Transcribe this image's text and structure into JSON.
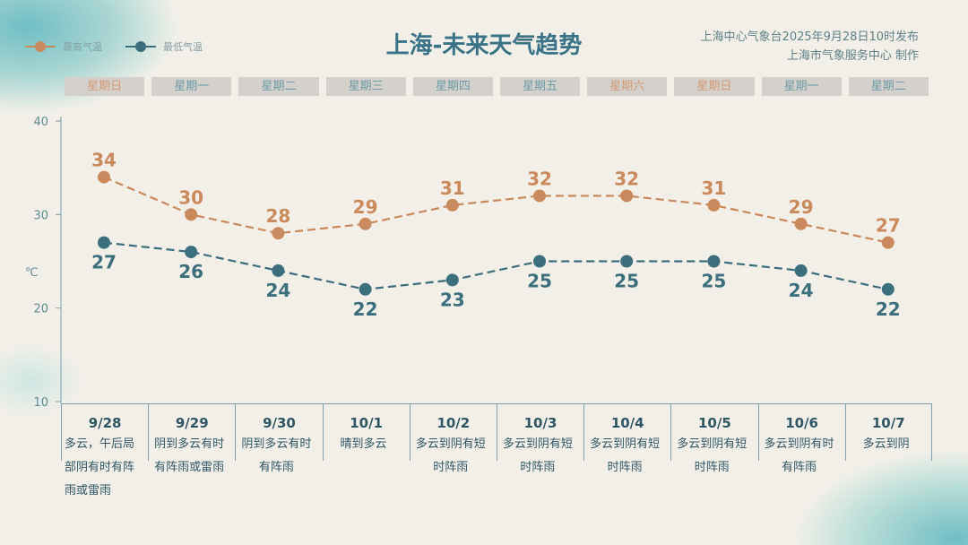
{
  "title": "上海-未来天气趋势",
  "publisher": "上海中心气象台2025年9月28日10时发布",
  "producer": "上海市气象服务中心 制作",
  "colors": {
    "high": "#c98a5e",
    "low": "#3d6e7c",
    "title": "#3b7285",
    "weekend": "#d29a78",
    "weekday": "#6d9aa5"
  },
  "legend": [
    {
      "label": "最高气温",
      "color": "#c98a5e"
    },
    {
      "label": "最低气温",
      "color": "#3d6e7c"
    }
  ],
  "weekdays": [
    {
      "label": "星期日",
      "weekend": true
    },
    {
      "label": "星期一",
      "weekend": false
    },
    {
      "label": "星期二",
      "weekend": false
    },
    {
      "label": "星期三",
      "weekend": false
    },
    {
      "label": "星期四",
      "weekend": false
    },
    {
      "label": "星期五",
      "weekend": false
    },
    {
      "label": "星期六",
      "weekend": true
    },
    {
      "label": "星期日",
      "weekend": true
    },
    {
      "label": "星期一",
      "weekend": false
    },
    {
      "label": "星期二",
      "weekend": false
    }
  ],
  "weather": [
    "多云，午后局部阴有时有阵雨或雷雨",
    "阴到多云有时有阵雨或雷雨",
    "阴到多云有时有阵雨",
    "晴到多云",
    "多云到阴有短时阵雨",
    "多云到阴有短时阵雨",
    "多云到阴有短时阵雨",
    "多云到阴有短时阵雨",
    "多云到阴有时有阵雨",
    "多云到阴"
  ],
  "chart_data": {
    "type": "line",
    "categories": [
      "9/28",
      "9/29",
      "9/30",
      "10/1",
      "10/2",
      "10/3",
      "10/4",
      "10/5",
      "10/6",
      "10/7"
    ],
    "series": [
      {
        "name": "最高气温",
        "values": [
          34,
          30,
          28,
          29,
          31,
          32,
          32,
          31,
          29,
          27
        ]
      },
      {
        "name": "最低气温",
        "values": [
          27,
          26,
          24,
          22,
          23,
          25,
          25,
          25,
          24,
          22
        ]
      }
    ],
    "ylabel": "℃",
    "ylim": [
      10,
      40
    ],
    "yticks": [
      10,
      20,
      30,
      40
    ],
    "grid": false,
    "legend": "top-left",
    "line_style": "dashed"
  }
}
